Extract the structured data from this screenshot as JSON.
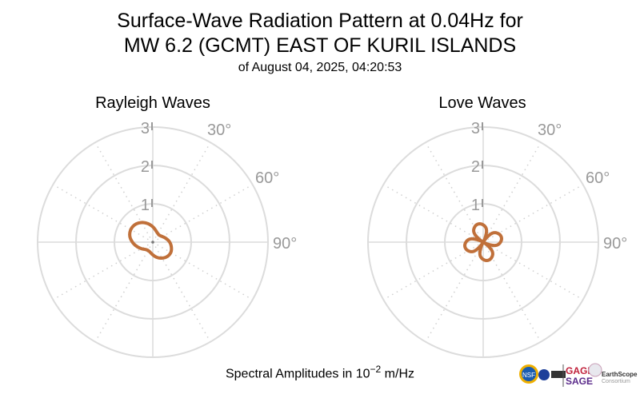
{
  "chart_data": [
    {
      "type": "polar-line",
      "title": "Rayleigh Waves",
      "angle_unit": "degrees azimuth (clockwise from top)",
      "radial_ticks": [
        "1",
        "2",
        "3"
      ],
      "radial_range": [
        0,
        3
      ],
      "angle_ticks": [
        "30°",
        "60°",
        "90°"
      ],
      "grid": true,
      "line_color": "#c0703a",
      "azimuth": [
        0,
        15,
        30,
        45,
        60,
        75,
        90,
        105,
        120,
        135,
        150,
        165,
        180,
        195,
        210,
        225,
        240,
        255,
        270,
        285,
        300,
        315,
        330,
        345
      ],
      "amplitude": [
        0.4,
        0.31,
        0.26,
        0.25,
        0.29,
        0.36,
        0.44,
        0.5,
        0.54,
        0.53,
        0.48,
        0.41,
        0.33,
        0.27,
        0.25,
        0.27,
        0.34,
        0.43,
        0.53,
        0.62,
        0.66,
        0.65,
        0.59,
        0.5
      ]
    },
    {
      "type": "polar-line",
      "title": "Love Waves",
      "angle_unit": "degrees azimuth (clockwise from top)",
      "radial_ticks": [
        "1",
        "2",
        "3"
      ],
      "radial_range": [
        0,
        3
      ],
      "angle_ticks": [
        "30°",
        "60°",
        "90°"
      ],
      "grid": true,
      "line_color": "#c0703a",
      "azimuth": [
        0,
        15,
        30,
        45,
        60,
        75,
        90,
        105,
        120,
        135,
        150,
        165,
        180,
        195,
        210,
        225,
        240,
        255,
        270,
        285,
        300,
        315,
        330,
        345
      ],
      "amplitude": [
        0.45,
        0.33,
        0.03,
        0.33,
        0.45,
        0.49,
        0.45,
        0.33,
        0.03,
        0.33,
        0.45,
        0.49,
        0.45,
        0.33,
        0.03,
        0.33,
        0.45,
        0.49,
        0.45,
        0.33,
        0.03,
        0.33,
        0.45,
        0.49
      ]
    }
  ],
  "header": {
    "title_line1": "Surface-Wave Radiation Pattern at 0.04Hz for",
    "title_line2": "MW 6.2 (GCMT) EAST OF KURIL ISLANDS",
    "subtitle": "of August 04, 2025, 04:20:53"
  },
  "footer": {
    "xlabel_prefix": "Spectral Amplitudes in 10",
    "xlabel_exp": "−2",
    "xlabel_suffix": " m/Hz",
    "logos": [
      "NSF",
      "NASA",
      "USGS",
      "GAGE",
      "SAGE",
      "EarthScope Consortium"
    ]
  }
}
